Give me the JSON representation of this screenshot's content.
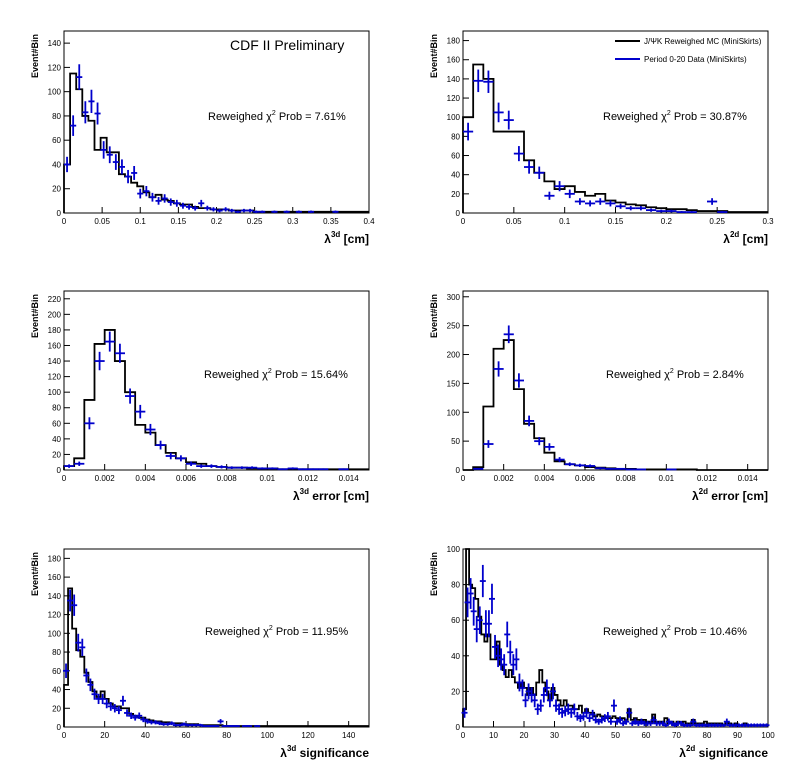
{
  "figure": {
    "preliminary_label": "CDF II Preliminary",
    "legend": [
      {
        "label": "J/ΨK Reweighed MC (MiniSkirts)",
        "color": "#000000"
      },
      {
        "label": "Period 0-20 Data (MiniSkirts)",
        "color": "#0000cc"
      }
    ],
    "colors": {
      "mc": "#000000",
      "data": "#0000cc"
    }
  },
  "chart_data": [
    {
      "type": "histogram",
      "panel": "top-left",
      "xlabel": "λ",
      "xlabel_sup": "3d",
      "xlabel_rest": " [cm]",
      "ylabel": "Event#Bin",
      "annotation": "Reweighed χ² Prob = 7.61%",
      "annotation_main": "Reweighed χ",
      "annotation_sup": "2",
      "annotation_rest": " Prob = 7.61%",
      "xlim": [
        0,
        0.4
      ],
      "ylim": [
        0,
        150
      ],
      "xticks": [
        "0",
        "0.05",
        "0.1",
        "0.15",
        "0.2",
        "0.25",
        "0.3",
        "0.35",
        "0.4"
      ],
      "yticks": [
        "0",
        "20",
        "40",
        "60",
        "80",
        "100",
        "120",
        "140"
      ],
      "bin_width": 0.008,
      "mc_values": [
        40,
        115,
        102,
        80,
        76,
        52,
        62,
        50,
        50,
        32,
        30,
        25,
        22,
        17,
        13,
        15,
        11,
        10,
        8,
        7,
        7,
        5,
        4,
        4,
        3,
        3,
        3,
        2,
        2,
        2,
        2,
        1,
        1,
        1,
        1,
        1,
        1,
        1,
        1,
        1,
        1,
        1,
        1,
        1,
        1,
        1,
        1,
        1,
        1,
        1
      ],
      "data_values": [
        40,
        72,
        112,
        83,
        92,
        82,
        52,
        48,
        42,
        38,
        30,
        33,
        16,
        18,
        13,
        10,
        12,
        9,
        8,
        6,
        5,
        4,
        8,
        4,
        3,
        2,
        3,
        2,
        1,
        2,
        2,
        1,
        1,
        0,
        1,
        0,
        1,
        0,
        1,
        0,
        1,
        0,
        0,
        0,
        1,
        0,
        0,
        0,
        0,
        0
      ]
    },
    {
      "type": "histogram",
      "panel": "top-right",
      "xlabel": "λ",
      "xlabel_sup": "2d",
      "xlabel_rest": " [cm]",
      "ylabel": "Event#Bin",
      "annotation": "Reweighed χ² Prob = 30.87%",
      "annotation_main": "Reweighed χ",
      "annotation_sup": "2",
      "annotation_rest": " Prob = 30.87%",
      "xlim": [
        0,
        0.3
      ],
      "ylim": [
        0,
        190
      ],
      "xticks": [
        "0",
        "0.05",
        "0.1",
        "0.15",
        "0.2",
        "0.25",
        "0.3"
      ],
      "yticks": [
        "0",
        "20",
        "40",
        "60",
        "80",
        "100",
        "120",
        "140",
        "160",
        "180"
      ],
      "bin_width": 0.01,
      "mc_values": [
        100,
        155,
        140,
        85,
        85,
        85,
        55,
        42,
        33,
        25,
        28,
        22,
        18,
        20,
        13,
        11,
        9,
        8,
        6,
        5,
        4,
        4,
        3,
        2,
        2,
        2,
        1,
        1,
        1,
        1
      ],
      "data_values": [
        85,
        138,
        137,
        105,
        97,
        62,
        48,
        42,
        18,
        28,
        20,
        12,
        10,
        12,
        10,
        7,
        5,
        5,
        3,
        2,
        2,
        1,
        1,
        0,
        12,
        1,
        0,
        0,
        0,
        0
      ]
    },
    {
      "type": "histogram",
      "panel": "middle-left",
      "xlabel": "λ",
      "xlabel_sup": "3d",
      "xlabel_rest": " error [cm]",
      "ylabel": "Event#Bin",
      "annotation": "Reweighed χ² Prob = 15.64%",
      "annotation_main": "Reweighed χ",
      "annotation_sup": "2",
      "annotation_rest": " Prob = 15.64%",
      "xlim": [
        0,
        0.015
      ],
      "ylim": [
        0,
        230
      ],
      "xticks": [
        "0",
        "0.002",
        "0.004",
        "0.006",
        "0.008",
        "0.01",
        "0.012",
        "0.014"
      ],
      "yticks": [
        "0",
        "20",
        "40",
        "60",
        "80",
        "100",
        "120",
        "140",
        "160",
        "180",
        "200",
        "220"
      ],
      "bin_width": 0.0005,
      "mc_values": [
        5,
        15,
        90,
        162,
        180,
        140,
        100,
        58,
        48,
        32,
        22,
        15,
        10,
        8,
        5,
        4,
        3,
        3,
        2,
        2,
        2,
        1,
        1,
        1,
        1,
        1,
        1,
        1,
        1,
        1
      ],
      "data_values": [
        5,
        8,
        60,
        140,
        165,
        150,
        95,
        75,
        52,
        32,
        18,
        15,
        8,
        5,
        5,
        4,
        3,
        3,
        3,
        2,
        2,
        1,
        2,
        1,
        1,
        1,
        0,
        1,
        0,
        0
      ]
    },
    {
      "type": "histogram",
      "panel": "middle-right",
      "xlabel": "λ",
      "xlabel_sup": "2d",
      "xlabel_rest": " error [cm]",
      "ylabel": "Event#Bin",
      "annotation": "Reweighed χ² Prob = 2.84%",
      "annotation_main": "Reweighed χ",
      "annotation_sup": "2",
      "annotation_rest": " Prob = 2.84%",
      "xlim": [
        0,
        0.015
      ],
      "ylim": [
        0,
        310
      ],
      "xticks": [
        "0",
        "0.002",
        "0.004",
        "0.006",
        "0.008",
        "0.01",
        "0.012",
        "0.014"
      ],
      "yticks": [
        "0",
        "50",
        "100",
        "150",
        "200",
        "250",
        "300"
      ],
      "bin_width": 0.0005,
      "mc_values": [
        0,
        5,
        110,
        210,
        225,
        140,
        80,
        55,
        30,
        15,
        10,
        8,
        5,
        4,
        3,
        2,
        2,
        1,
        1,
        1,
        1,
        1,
        1,
        0,
        0,
        0,
        0,
        0,
        0,
        0
      ],
      "data_values": [
        0,
        2,
        45,
        175,
        235,
        155,
        85,
        50,
        40,
        18,
        10,
        8,
        7,
        3,
        2,
        2,
        1,
        1,
        0,
        0,
        1,
        0,
        0,
        0,
        0,
        0,
        0,
        0,
        0,
        0
      ]
    },
    {
      "type": "histogram",
      "panel": "bottom-left",
      "xlabel": "λ",
      "xlabel_sup": "3d",
      "xlabel_rest": " significance",
      "ylabel": "Event#Bin",
      "annotation": "Reweighed χ² Prob = 11.95%",
      "annotation_main": "Reweighed χ",
      "annotation_sup": "2",
      "annotation_rest": " Prob = 11.95%",
      "xlim": [
        0,
        150
      ],
      "ylim": [
        0,
        190
      ],
      "xticks": [
        "0",
        "20",
        "40",
        "60",
        "80",
        "100",
        "120",
        "140"
      ],
      "yticks": [
        "0",
        "20",
        "40",
        "60",
        "80",
        "100",
        "120",
        "140",
        "160",
        "180"
      ],
      "bin_width": 2,
      "mc_values": [
        45,
        148,
        105,
        82,
        75,
        58,
        48,
        38,
        32,
        38,
        30,
        25,
        22,
        22,
        20,
        20,
        14,
        12,
        10,
        10,
        8,
        7,
        6,
        6,
        5,
        5,
        4,
        4,
        4,
        3,
        3,
        3,
        3,
        2,
        2,
        2,
        2,
        2,
        2,
        1,
        1,
        1,
        1,
        1,
        1,
        1,
        1,
        1,
        1,
        1,
        1,
        1,
        1,
        1,
        1,
        1,
        1,
        1,
        1,
        1,
        1,
        1,
        1,
        1,
        1,
        1,
        1,
        1,
        1,
        1,
        1,
        1,
        1,
        1,
        1
      ],
      "data_values": [
        60,
        135,
        130,
        90,
        85,
        55,
        45,
        35,
        30,
        30,
        25,
        22,
        20,
        18,
        28,
        15,
        12,
        10,
        12,
        8,
        6,
        5,
        5,
        4,
        3,
        3,
        4,
        2,
        2,
        3,
        2,
        2,
        2,
        2,
        1,
        1,
        1,
        1,
        6,
        1,
        1,
        1,
        1,
        0,
        1,
        1,
        0,
        1,
        0,
        0,
        0,
        0,
        0,
        0,
        0,
        0,
        0,
        0,
        0,
        0,
        0,
        0,
        0,
        0,
        0,
        0,
        0,
        0,
        0,
        0,
        0,
        0,
        0,
        0,
        0
      ]
    },
    {
      "type": "histogram",
      "panel": "bottom-right",
      "xlabel": "λ",
      "xlabel_sup": "2d",
      "xlabel_rest": " significance",
      "ylabel": "Event#Bin",
      "annotation": "Reweighed χ² Prob = 10.46%",
      "annotation_main": "Reweighed χ",
      "annotation_sup": "2",
      "annotation_rest": " Prob = 10.46%",
      "xlim": [
        0,
        100
      ],
      "ylim": [
        0,
        100
      ],
      "xticks": [
        "0",
        "10",
        "20",
        "30",
        "40",
        "50",
        "60",
        "70",
        "80",
        "90",
        "100"
      ],
      "yticks": [
        "0",
        "20",
        "40",
        "60",
        "80",
        "100"
      ],
      "bin_width": 1,
      "mc_values": [
        10,
        100,
        80,
        78,
        72,
        62,
        52,
        48,
        52,
        38,
        38,
        48,
        35,
        32,
        28,
        32,
        28,
        25,
        22,
        25,
        22,
        18,
        22,
        18,
        25,
        32,
        25,
        20,
        15,
        22,
        18,
        15,
        12,
        15,
        12,
        12,
        10,
        10,
        12,
        8,
        10,
        8,
        8,
        6,
        7,
        6,
        6,
        5,
        5,
        6,
        5,
        4,
        5,
        4,
        10,
        4,
        5,
        4,
        3,
        4,
        3,
        3,
        7,
        3,
        3,
        3,
        5,
        2,
        3,
        2,
        3,
        2,
        3,
        2,
        2,
        4,
        2,
        2,
        2,
        3,
        2,
        2,
        2,
        2,
        2,
        1,
        2,
        2,
        1,
        2,
        1,
        1,
        2,
        1,
        1,
        1,
        1,
        1,
        1,
        1
      ],
      "data_values": [
        8,
        70,
        75,
        65,
        55,
        60,
        82,
        58,
        58,
        72,
        45,
        40,
        38,
        35,
        52,
        42,
        35,
        38,
        25,
        22,
        15,
        20,
        18,
        15,
        10,
        12,
        18,
        22,
        15,
        20,
        12,
        10,
        8,
        9,
        10,
        8,
        10,
        6,
        5,
        6,
        8,
        5,
        7,
        4,
        3,
        4,
        5,
        6,
        3,
        12,
        3,
        4,
        2,
        3,
        8,
        2,
        3,
        2,
        3,
        2,
        2,
        2,
        4,
        2,
        2,
        2,
        1,
        3,
        2,
        1,
        2,
        2,
        1,
        1,
        1,
        3,
        1,
        1,
        1,
        1,
        1,
        1,
        1,
        1,
        1,
        1,
        3,
        1,
        1,
        1,
        1,
        1,
        1,
        1,
        1,
        1,
        1,
        1,
        1,
        1
      ]
    }
  ]
}
